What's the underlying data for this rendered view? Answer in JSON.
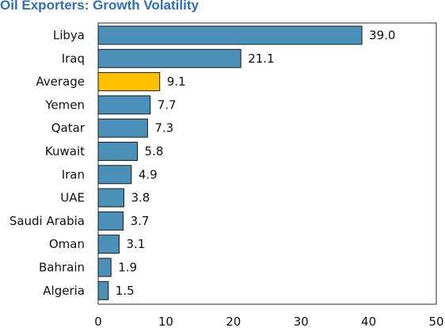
{
  "chart_data": {
    "type": "bar",
    "orientation": "horizontal",
    "title": "Oil Exporters: Growth Volatility",
    "categories": [
      "Libya",
      "Iraq",
      "Average",
      "Yemen",
      "Qatar",
      "Kuwait",
      "Iran",
      "UAE",
      "Saudi Arabia",
      "Oman",
      "Bahrain",
      "Algeria"
    ],
    "values": [
      39.0,
      21.1,
      9.1,
      7.7,
      7.3,
      5.8,
      4.9,
      3.8,
      3.7,
      3.1,
      1.9,
      1.5
    ],
    "value_labels": [
      "39.0",
      "21.1",
      "9.1",
      "7.7",
      "7.3",
      "5.8",
      "4.9",
      "3.8",
      "3.7",
      "3.1",
      "1.9",
      "1.5"
    ],
    "xlim": [
      0,
      50
    ],
    "xticks": [
      0,
      10,
      20,
      30,
      40,
      50
    ],
    "xlabel": "",
    "ylabel": "",
    "grid": false,
    "legend": "none",
    "colors": {
      "bar": "#4a90b8",
      "highlight": "#ffc000",
      "highlight_category": "Average",
      "edge": "#1a1a1a",
      "title": "#2e6fb7"
    }
  }
}
